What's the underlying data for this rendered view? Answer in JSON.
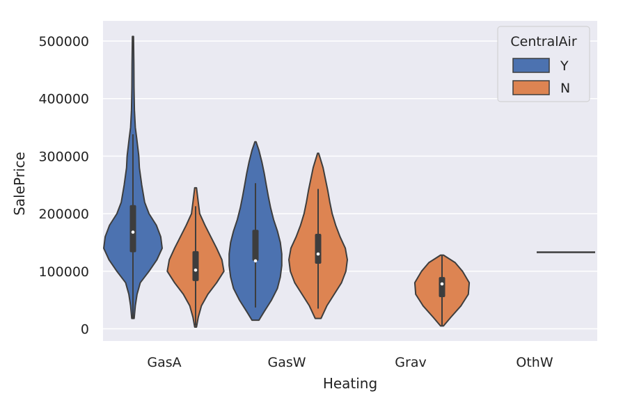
{
  "chart_data": {
    "type": "violin",
    "xlabel": "Heating",
    "ylabel": "SalePrice",
    "ylim": [
      -20000,
      535000
    ],
    "yticks": [
      0,
      100000,
      200000,
      300000,
      400000,
      500000
    ],
    "ytick_labels": [
      "0",
      "100000",
      "200000",
      "300000",
      "400000",
      "500000"
    ],
    "categories": [
      "GasA",
      "GasW",
      "Grav",
      "OthW"
    ],
    "grid": true,
    "legend": {
      "title": "CentralAir",
      "placement": "top-right",
      "entries": [
        "Y",
        "N"
      ]
    },
    "colors": {
      "Y": "#4c72b0",
      "N": "#dd8452",
      "background": "#eaeaf2",
      "edge": "#3d3d3d"
    },
    "series": [
      {
        "name": "Y",
        "violins": [
          {
            "category": "GasA",
            "min": 18000,
            "q1": 133000,
            "median": 168000,
            "q3": 215000,
            "max": 508000,
            "profile": [
              [
                18000,
                0.04
              ],
              [
                40000,
                0.08
              ],
              [
                60000,
                0.14
              ],
              [
                80000,
                0.25
              ],
              [
                100000,
                0.55
              ],
              [
                120000,
                0.82
              ],
              [
                140000,
                1.0
              ],
              [
                160000,
                0.95
              ],
              [
                180000,
                0.8
              ],
              [
                200000,
                0.55
              ],
              [
                220000,
                0.4
              ],
              [
                250000,
                0.3
              ],
              [
                280000,
                0.22
              ],
              [
                300000,
                0.2
              ],
              [
                330000,
                0.13
              ],
              [
                350000,
                0.08
              ],
              [
                380000,
                0.05
              ],
              [
                420000,
                0.035
              ],
              [
                460000,
                0.03
              ],
              [
                508000,
                0.02
              ]
            ]
          },
          {
            "category": "GasW",
            "min": 15000,
            "q1": 118000,
            "median": 118000,
            "q3": 172000,
            "max": 325000,
            "profile": [
              [
                15000,
                0.12
              ],
              [
                30000,
                0.3
              ],
              [
                50000,
                0.55
              ],
              [
                70000,
                0.75
              ],
              [
                90000,
                0.85
              ],
              [
                110000,
                0.9
              ],
              [
                130000,
                0.9
              ],
              [
                150000,
                0.85
              ],
              [
                170000,
                0.75
              ],
              [
                190000,
                0.62
              ],
              [
                210000,
                0.52
              ],
              [
                230000,
                0.44
              ],
              [
                250000,
                0.37
              ],
              [
                270000,
                0.3
              ],
              [
                290000,
                0.22
              ],
              [
                310000,
                0.12
              ],
              [
                325000,
                0.02
              ]
            ]
          }
        ]
      },
      {
        "name": "N",
        "violins": [
          {
            "category": "GasA",
            "min": 3000,
            "q1": 83000,
            "median": 102000,
            "q3": 135000,
            "max": 245000,
            "profile": [
              [
                3000,
                0.03
              ],
              [
                20000,
                0.09
              ],
              [
                40000,
                0.2
              ],
              [
                60000,
                0.42
              ],
              [
                80000,
                0.72
              ],
              [
                100000,
                0.97
              ],
              [
                120000,
                0.9
              ],
              [
                140000,
                0.72
              ],
              [
                160000,
                0.52
              ],
              [
                180000,
                0.32
              ],
              [
                200000,
                0.14
              ],
              [
                220000,
                0.09
              ],
              [
                245000,
                0.03
              ]
            ]
          },
          {
            "category": "GasW",
            "min": 18000,
            "q1": 113000,
            "median": 130000,
            "q3": 165000,
            "max": 305000,
            "profile": [
              [
                18000,
                0.1
              ],
              [
                40000,
                0.3
              ],
              [
                60000,
                0.55
              ],
              [
                80000,
                0.8
              ],
              [
                100000,
                0.95
              ],
              [
                120000,
                1.0
              ],
              [
                140000,
                0.93
              ],
              [
                160000,
                0.75
              ],
              [
                180000,
                0.6
              ],
              [
                200000,
                0.48
              ],
              [
                220000,
                0.4
              ],
              [
                240000,
                0.33
              ],
              [
                260000,
                0.25
              ],
              [
                280000,
                0.17
              ],
              [
                300000,
                0.05
              ],
              [
                305000,
                0.02
              ]
            ]
          },
          {
            "category": "Grav",
            "min": 5000,
            "q1": 55000,
            "median": 78000,
            "q3": 90000,
            "max": 128000,
            "profile": [
              [
                5000,
                0.05
              ],
              [
                20000,
                0.3
              ],
              [
                40000,
                0.65
              ],
              [
                60000,
                0.9
              ],
              [
                80000,
                0.93
              ],
              [
                100000,
                0.7
              ],
              [
                115000,
                0.45
              ],
              [
                128000,
                0.05
              ]
            ]
          },
          {
            "category": "OthW",
            "min": 133000,
            "q1": 133000,
            "median": 133000,
            "q3": 133000,
            "max": 133000,
            "profile": []
          }
        ]
      }
    ]
  }
}
